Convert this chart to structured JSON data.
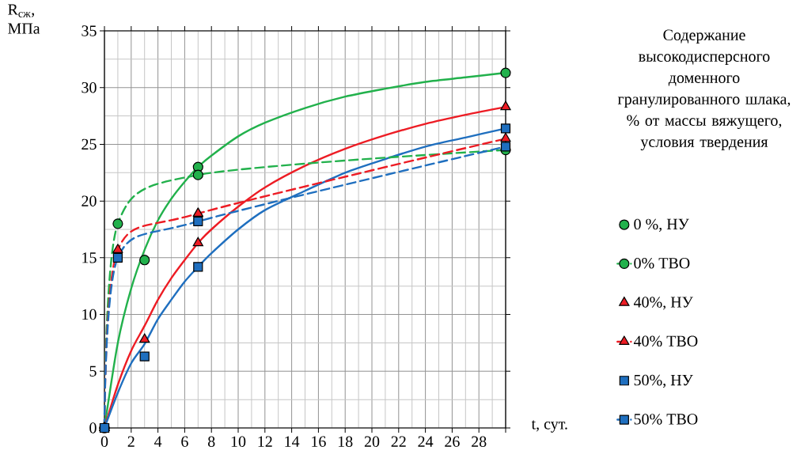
{
  "chart_data": {
    "type": "line",
    "xlabel": "t, сут.",
    "ylabel": "R$_{сж}$, МПа",
    "legend_title": "Содержание высокодисперсного доменного гранулированного шлака, % от массы вяжущего, условия твердения",
    "xlim": [
      0,
      30
    ],
    "ylim": [
      0,
      35
    ],
    "xticks": [
      0,
      2,
      4,
      6,
      8,
      10,
      12,
      14,
      16,
      18,
      20,
      22,
      24,
      26,
      28,
      {
        "value": 30,
        "label": null
      }
    ],
    "yticks": [
      0,
      5,
      10,
      15,
      20,
      25,
      30,
      35
    ],
    "grid": true,
    "legend": "right",
    "series": [
      {
        "name": "0 %, НУ",
        "type": "scatter",
        "marker": "circle",
        "color": "#22b14c",
        "x": [
          0,
          3,
          7,
          30
        ],
        "values": [
          0,
          14.8,
          23.0,
          31.3
        ]
      },
      {
        "name": "0% ТВО",
        "marker": "circle",
        "line_style": "dashed",
        "color": "#22b14c",
        "x": [
          0,
          1,
          7,
          30
        ],
        "values": [
          0,
          18.0,
          22.3,
          24.5
        ]
      },
      {
        "name": "40%, НУ",
        "type": "scatter",
        "marker": "triangle",
        "color": "#ed1c24",
        "x": [
          0,
          3,
          7,
          30
        ],
        "values": [
          0,
          7.8,
          16.3,
          28.3
        ]
      },
      {
        "name": "40% ТВО",
        "marker": "triangle",
        "line_style": "dashed",
        "color": "#ed1c24",
        "x": [
          0,
          1,
          7,
          30
        ],
        "values": [
          0,
          15.7,
          18.9,
          25.5
        ]
      },
      {
        "name": "50%, НУ",
        "type": "scatter",
        "marker": "square",
        "color": "#1f6fbf",
        "x": [
          0,
          3,
          7,
          30
        ],
        "values": [
          0,
          6.3,
          14.2,
          26.4
        ]
      },
      {
        "name": "50% ТВО",
        "marker": "square",
        "line_style": "dashed",
        "color": "#1f6fbf",
        "x": [
          0,
          1,
          7,
          30
        ],
        "values": [
          0,
          15.0,
          18.2,
          24.8
        ]
      },
      {
        "marker": "none",
        "line_style": "solid",
        "color": "#22b14c",
        "x": [
          0,
          1,
          2,
          3,
          4,
          5,
          6,
          7,
          8,
          10,
          12,
          15,
          18,
          21,
          24,
          27,
          30
        ],
        "values": [
          0,
          7.5,
          12.3,
          15.7,
          18.3,
          20.2,
          21.7,
          23.0,
          24.0,
          25.7,
          26.9,
          28.2,
          29.2,
          29.9,
          30.5,
          30.9,
          31.3
        ]
      },
      {
        "marker": "none",
        "line_style": "solid",
        "color": "#ed1c24",
        "x": [
          0,
          1,
          2,
          3,
          4,
          5,
          6,
          7,
          8,
          10,
          12,
          15,
          18,
          21,
          24,
          27,
          30
        ],
        "values": [
          0,
          3.8,
          6.8,
          9.0,
          11.3,
          13.2,
          14.8,
          16.3,
          17.5,
          19.5,
          21.2,
          23.1,
          24.6,
          25.8,
          26.8,
          27.6,
          28.3
        ]
      },
      {
        "marker": "none",
        "line_style": "solid",
        "color": "#1f6fbf",
        "x": [
          0,
          1,
          2,
          3,
          4,
          5,
          6,
          7,
          8,
          10,
          12,
          15,
          18,
          21,
          24,
          27,
          30
        ],
        "values": [
          0,
          3.1,
          5.7,
          7.4,
          9.6,
          11.3,
          12.9,
          14.2,
          15.4,
          17.5,
          19.2,
          20.9,
          22.5,
          23.7,
          24.8,
          25.6,
          26.4
        ]
      }
    ]
  }
}
